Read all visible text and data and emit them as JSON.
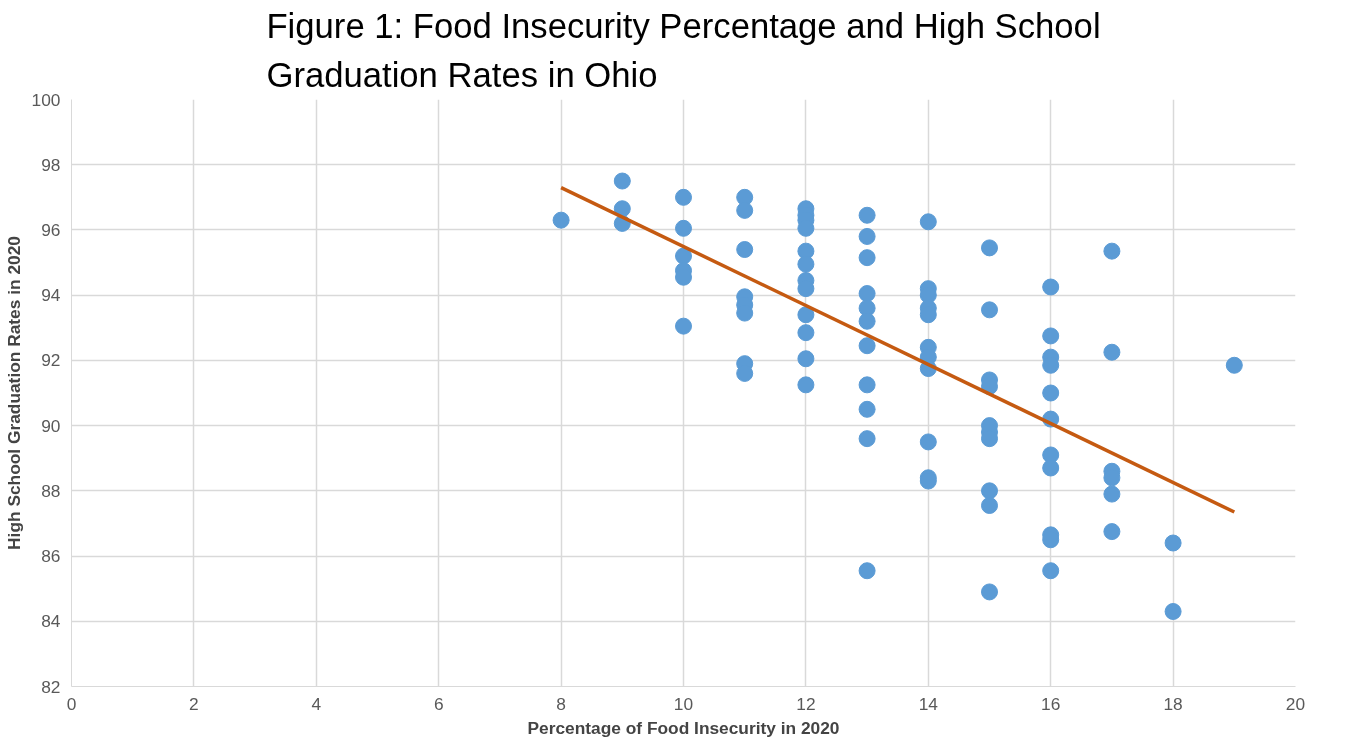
{
  "chart_data": {
    "type": "scatter",
    "title": "Figure 1: Food Insecurity Percentage and High School\nGraduation Rates in Ohio",
    "xlabel": "Percentage of Food Insecurity in 2020",
    "ylabel": "High School Graduation Rates in 2020",
    "xlim": [
      0,
      20
    ],
    "xticks": [
      0,
      2,
      4,
      6,
      8,
      10,
      12,
      14,
      16,
      18,
      20
    ],
    "ylim": [
      82,
      100
    ],
    "yticks": [
      82,
      84,
      86,
      88,
      90,
      92,
      94,
      96,
      98,
      100
    ],
    "grid": true,
    "series": [
      {
        "marker": "circle",
        "color": "#5b9bd5",
        "x": [
          8,
          9,
          9,
          9,
          10,
          10,
          10,
          10,
          10,
          10,
          11,
          11,
          11,
          11,
          11,
          11,
          11,
          11,
          12,
          12,
          12,
          12,
          12,
          12,
          12,
          12,
          12,
          12,
          12,
          12,
          13,
          13,
          13,
          13,
          13,
          13,
          13,
          13,
          13,
          13,
          13,
          14,
          14,
          14,
          14,
          14,
          14,
          14,
          14,
          14,
          14,
          14,
          15,
          15,
          15,
          15,
          15,
          15,
          15,
          15,
          15,
          15,
          16,
          16,
          16,
          16,
          16,
          16,
          16,
          16,
          16,
          16,
          16,
          17,
          17,
          17,
          17,
          17,
          17,
          18,
          18,
          19
        ],
        "values": [
          96.3,
          97.5,
          96.65,
          96.2,
          97.0,
          96.05,
          95.2,
          94.75,
          94.55,
          93.05,
          97.0,
          96.6,
          95.4,
          93.95,
          93.7,
          93.45,
          91.9,
          91.6,
          96.65,
          96.45,
          96.3,
          96.05,
          95.35,
          94.95,
          94.45,
          94.2,
          93.4,
          92.85,
          92.05,
          91.25,
          96.45,
          95.8,
          95.15,
          94.05,
          93.6,
          93.2,
          92.45,
          91.25,
          90.5,
          89.6,
          85.55,
          96.25,
          94.2,
          94.0,
          93.6,
          93.4,
          92.4,
          92.1,
          91.75,
          89.5,
          88.4,
          88.3,
          95.45,
          93.55,
          91.4,
          91.2,
          90.0,
          89.8,
          89.6,
          88.0,
          87.55,
          84.9,
          94.25,
          92.75,
          92.1,
          91.85,
          91.0,
          90.2,
          89.1,
          88.7,
          86.65,
          86.5,
          85.55,
          95.35,
          92.25,
          88.6,
          88.4,
          87.9,
          86.75,
          86.4,
          84.3,
          91.85
        ]
      },
      {
        "type": "line",
        "color": "#c55a11",
        "line_style": "solid",
        "x": [
          8,
          19
        ],
        "values": [
          97.3,
          87.35
        ]
      }
    ]
  }
}
